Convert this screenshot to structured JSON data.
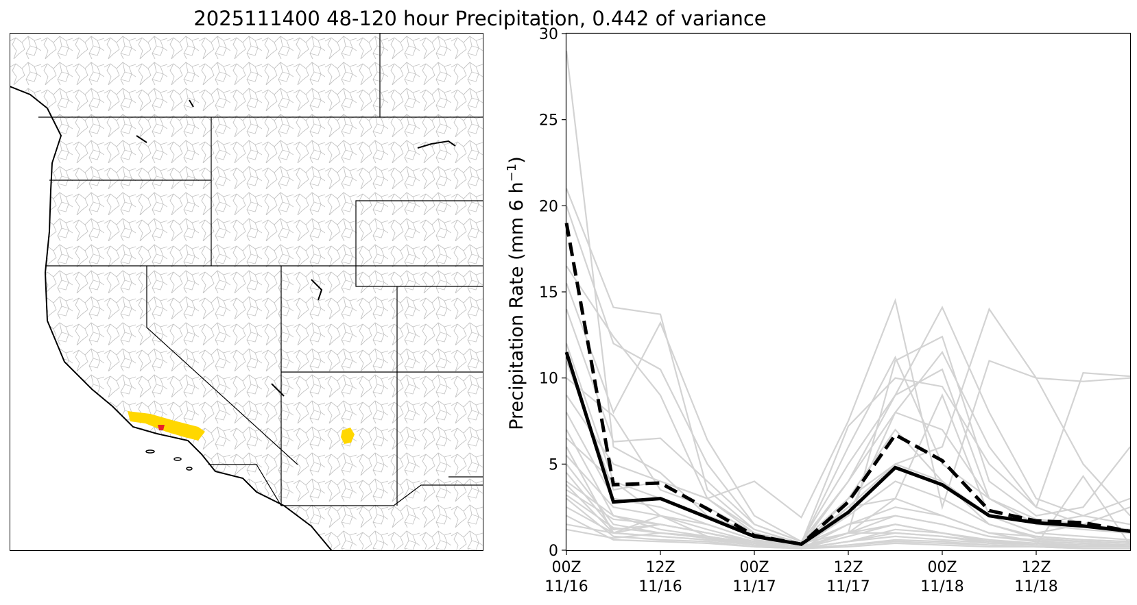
{
  "title": "2025111400 48-120 hour Precipitation, 0.442 of variance",
  "colors": {
    "basin_outline": "#b5b5b5",
    "coast": "#000000",
    "highlight_basin": "#ffd700",
    "selected_point": "#e8202a",
    "member_line": "#d3d3d3",
    "mean_line": "#000000"
  },
  "map": {
    "description_icon": "map-icon",
    "highlight_regions": [
      "Southern California coastal basin",
      "Central Arizona basin"
    ]
  },
  "chart_data": {
    "type": "line",
    "ylabel": "Precipitation Rate (mm 6 h",
    "ylabel_exp": "−1",
    "ylabel_close": ")",
    "ylim": [
      0,
      30
    ],
    "yticks": [
      "0",
      "5",
      "10",
      "15",
      "20",
      "25",
      "30"
    ],
    "x": [
      0,
      1,
      2,
      3,
      4,
      5,
      6,
      7,
      8,
      9,
      10,
      11,
      12
    ],
    "xlim": [
      0,
      12
    ],
    "xticks": [
      {
        "x": 0,
        "line1": "00Z",
        "line2": "11/16"
      },
      {
        "x": 2,
        "line1": "12Z",
        "line2": "11/16"
      },
      {
        "x": 4,
        "line1": "00Z",
        "line2": "11/17"
      },
      {
        "x": 6,
        "line1": "12Z",
        "line2": "11/17"
      },
      {
        "x": 8,
        "line1": "00Z",
        "line2": "11/18"
      },
      {
        "x": 10,
        "line1": "12Z",
        "line2": "11/18"
      }
    ],
    "grid": false,
    "series_solid": {
      "values": [
        11.5,
        2.8,
        3.0,
        1.9,
        0.8,
        0.35,
        2.2,
        4.8,
        3.8,
        2.0,
        1.6,
        1.4,
        1.1
      ]
    },
    "series_dashed": {
      "values": [
        19.0,
        3.8,
        3.9,
        2.4,
        0.85,
        0.35,
        2.8,
        6.7,
        5.2,
        2.3,
        1.7,
        1.6,
        1.1
      ]
    },
    "members": [
      [
        29.0,
        6.0,
        4.5,
        2.0,
        1.0,
        0.3,
        1.5,
        2.0,
        1.5,
        0.8,
        0.6,
        0.5,
        0.4
      ],
      [
        21.0,
        14.1,
        13.7,
        3.5,
        1.2,
        0.4,
        2.5,
        3.0,
        2.0,
        1.0,
        0.8,
        0.6,
        0.5
      ],
      [
        20.0,
        12.0,
        10.5,
        5.0,
        1.5,
        0.5,
        4.0,
        8.0,
        7.0,
        3.0,
        1.5,
        1.2,
        1.0
      ],
      [
        16.5,
        12.4,
        9.0,
        3.0,
        4.0,
        1.9,
        7.5,
        14.5,
        2.5,
        11.0,
        10.0,
        9.8,
        10.0
      ],
      [
        15.5,
        8.0,
        13.2,
        6.4,
        2.0,
        0.5,
        5.0,
        9.0,
        14.1,
        8.0,
        3.0,
        2.0,
        1.5
      ],
      [
        14.0,
        6.3,
        6.5,
        4.0,
        1.5,
        0.5,
        3.0,
        5.0,
        6.0,
        14.0,
        10.0,
        5.0,
        2.0
      ],
      [
        12.0,
        4.0,
        3.0,
        2.0,
        1.0,
        0.4,
        7.2,
        10.0,
        9.5,
        5.0,
        2.5,
        10.3,
        10.1
      ],
      [
        11.0,
        3.5,
        4.0,
        3.0,
        1.2,
        0.4,
        6.0,
        11.2,
        5.0,
        3.0,
        1.8,
        1.5,
        1.2
      ],
      [
        10.0,
        7.8,
        3.5,
        2.5,
        1.0,
        0.4,
        1.0,
        11.0,
        12.4,
        4.0,
        2.0,
        2.5,
        6.0
      ],
      [
        9.0,
        5.0,
        4.0,
        3.0,
        1.0,
        0.3,
        2.0,
        8.0,
        11.5,
        6.0,
        2.5,
        1.5,
        1.0
      ],
      [
        8.0,
        3.0,
        2.5,
        1.5,
        0.6,
        0.3,
        4.0,
        9.0,
        10.5,
        3.0,
        1.5,
        2.0,
        3.0
      ],
      [
        7.0,
        2.0,
        1.5,
        1.0,
        0.5,
        0.2,
        1.0,
        3.0,
        9.0,
        2.0,
        1.0,
        1.5,
        2.5
      ],
      [
        6.5,
        4.0,
        2.0,
        1.5,
        0.6,
        0.2,
        3.0,
        7.0,
        4.0,
        2.0,
        1.0,
        0.8,
        0.6
      ],
      [
        6.0,
        1.0,
        1.5,
        1.0,
        0.5,
        0.2,
        1.0,
        1.5,
        1.0,
        0.5,
        0.4,
        0.3,
        0.3
      ],
      [
        5.5,
        2.5,
        2.0,
        1.2,
        0.5,
        0.2,
        2.0,
        4.0,
        3.0,
        1.5,
        0.8,
        0.6,
        0.5
      ],
      [
        5.0,
        1.5,
        1.0,
        0.8,
        0.4,
        0.1,
        1.5,
        2.5,
        2.0,
        1.0,
        0.5,
        0.4,
        0.3
      ],
      [
        4.5,
        1.2,
        1.5,
        1.0,
        0.4,
        0.1,
        0.5,
        1.0,
        0.8,
        0.5,
        0.4,
        0.3,
        0.3
      ],
      [
        4.0,
        2.0,
        1.2,
        0.8,
        0.3,
        0.1,
        2.5,
        5.0,
        4.0,
        1.5,
        0.7,
        0.5,
        0.4
      ],
      [
        3.8,
        1.0,
        0.8,
        0.6,
        0.3,
        0.1,
        0.3,
        0.5,
        0.4,
        0.3,
        0.2,
        0.2,
        0.2
      ],
      [
        3.5,
        1.8,
        1.5,
        1.0,
        0.4,
        0.1,
        1.0,
        2.0,
        1.5,
        0.8,
        0.5,
        0.4,
        0.3
      ],
      [
        3.2,
        1.3,
        1.0,
        0.7,
        0.3,
        0.1,
        0.5,
        1.2,
        1.0,
        0.6,
        0.4,
        0.3,
        0.3
      ],
      [
        3.0,
        0.8,
        0.6,
        0.5,
        0.2,
        0.1,
        0.2,
        0.4,
        0.3,
        0.2,
        0.2,
        0.1,
        0.1
      ],
      [
        2.5,
        1.0,
        0.8,
        0.6,
        0.3,
        0.1,
        0.8,
        1.5,
        1.0,
        0.5,
        0.3,
        0.3,
        0.2
      ],
      [
        2.0,
        0.6,
        0.5,
        0.4,
        0.2,
        0.1,
        0.3,
        0.6,
        0.5,
        0.3,
        0.2,
        0.1,
        0.1
      ],
      [
        1.5,
        1.0,
        2.0,
        0.8,
        0.4,
        0.1,
        1.0,
        1.0,
        0.8,
        0.4,
        0.3,
        4.3,
        0.3
      ],
      [
        1.2,
        0.7,
        1.0,
        0.7,
        0.3,
        0.1,
        0.5,
        0.8,
        0.6,
        0.4,
        0.3,
        0.2,
        0.2
      ]
    ]
  }
}
